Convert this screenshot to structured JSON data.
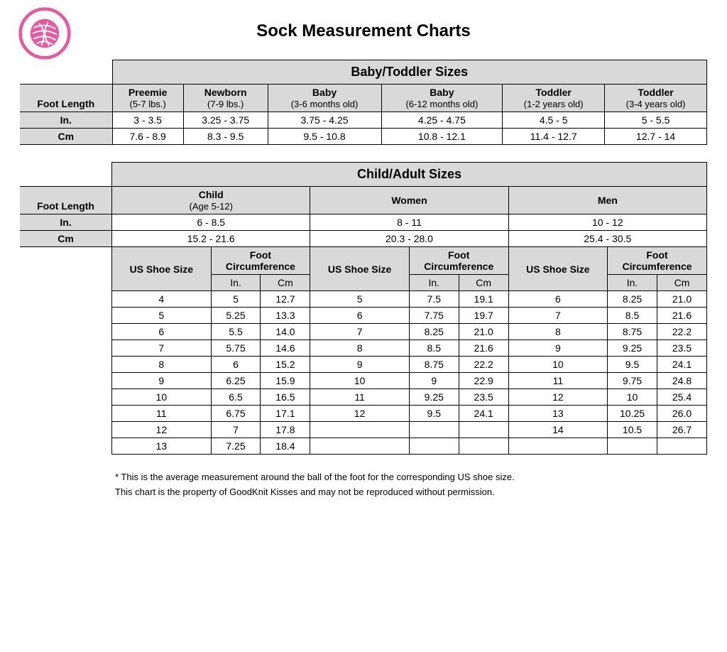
{
  "page_title": "Sock Measurement Charts",
  "colors": {
    "header_gray": "#d9d9d9",
    "border": "#000000",
    "logo_pink": "#e85aa0",
    "background": "#ffffff"
  },
  "labels": {
    "foot_length": "Foot Length",
    "in": "In.",
    "cm": "Cm",
    "us_shoe_size": "US Shoe Size",
    "foot_circ": "Foot Circumference"
  },
  "baby_table": {
    "section_title": "Baby/Toddler Sizes",
    "categories": [
      {
        "name": "Preemie",
        "sub": "(5-7 lbs.)"
      },
      {
        "name": "Newborn",
        "sub": "(7-9 lbs.)"
      },
      {
        "name": "Baby",
        "sub": "(3-6 months old)"
      },
      {
        "name": "Baby",
        "sub": "(6-12 months old)"
      },
      {
        "name": "Toddler",
        "sub": "(1-2 years old)"
      },
      {
        "name": "Toddler",
        "sub": "(3-4 years old)"
      }
    ],
    "inches": [
      "3 - 3.5",
      "3.25 - 3.75",
      "3.75 - 4.25",
      "4.25 - 4.75",
      "4.5 - 5",
      "5 - 5.5"
    ],
    "cm": [
      "7.6 - 8.9",
      "8.3 - 9.5",
      "9.5 - 10.8",
      "10.8 - 12.1",
      "11.4 - 12.7",
      "12.7 - 14"
    ]
  },
  "adult_table": {
    "section_title": "Child/Adult Sizes",
    "groups": [
      {
        "name": "Child",
        "sub": "(Age 5-12)",
        "length_in": "6 - 8.5",
        "length_cm": "15.2 - 21.6",
        "rows": [
          {
            "size": "4",
            "in": "5",
            "cm": "12.7"
          },
          {
            "size": "5",
            "in": "5.25",
            "cm": "13.3"
          },
          {
            "size": "6",
            "in": "5.5",
            "cm": "14.0"
          },
          {
            "size": "7",
            "in": "5.75",
            "cm": "14.6"
          },
          {
            "size": "8",
            "in": "6",
            "cm": "15.2"
          },
          {
            "size": "9",
            "in": "6.25",
            "cm": "15.9"
          },
          {
            "size": "10",
            "in": "6.5",
            "cm": "16.5"
          },
          {
            "size": "11",
            "in": "6.75",
            "cm": "17.1"
          },
          {
            "size": "12",
            "in": "7",
            "cm": "17.8"
          },
          {
            "size": "13",
            "in": "7.25",
            "cm": "18.4"
          }
        ]
      },
      {
        "name": "Women",
        "sub": "",
        "length_in": "8 - 11",
        "length_cm": "20.3 - 28.0",
        "rows": [
          {
            "size": "5",
            "in": "7.5",
            "cm": "19.1"
          },
          {
            "size": "6",
            "in": "7.75",
            "cm": "19.7"
          },
          {
            "size": "7",
            "in": "8.25",
            "cm": "21.0"
          },
          {
            "size": "8",
            "in": "8.5",
            "cm": "21.6"
          },
          {
            "size": "9",
            "in": "8.75",
            "cm": "22.2"
          },
          {
            "size": "10",
            "in": "9",
            "cm": "22.9"
          },
          {
            "size": "11",
            "in": "9.25",
            "cm": "23.5"
          },
          {
            "size": "12",
            "in": "9.5",
            "cm": "24.1"
          },
          {
            "size": "",
            "in": "",
            "cm": ""
          },
          {
            "size": "",
            "in": "",
            "cm": ""
          }
        ]
      },
      {
        "name": "Men",
        "sub": "",
        "length_in": "10 - 12",
        "length_cm": "25.4 - 30.5",
        "rows": [
          {
            "size": "6",
            "in": "8.25",
            "cm": "21.0"
          },
          {
            "size": "7",
            "in": "8.5",
            "cm": "21.6"
          },
          {
            "size": "8",
            "in": "8.75",
            "cm": "22.2"
          },
          {
            "size": "9",
            "in": "9.25",
            "cm": "23.5"
          },
          {
            "size": "10",
            "in": "9.5",
            "cm": "24.1"
          },
          {
            "size": "11",
            "in": "9.75",
            "cm": "24.8"
          },
          {
            "size": "12",
            "in": "10",
            "cm": "25.4"
          },
          {
            "size": "13",
            "in": "10.25",
            "cm": "26.0"
          },
          {
            "size": "14",
            "in": "10.5",
            "cm": "26.7"
          },
          {
            "size": "",
            "in": "",
            "cm": ""
          }
        ]
      }
    ]
  },
  "footnotes": {
    "note1": "* This is the average measurement around the ball of the foot for the corresponding US shoe size.",
    "note2": "This chart is the property of GoodKnit Kisses and may not be reproduced without permission."
  }
}
